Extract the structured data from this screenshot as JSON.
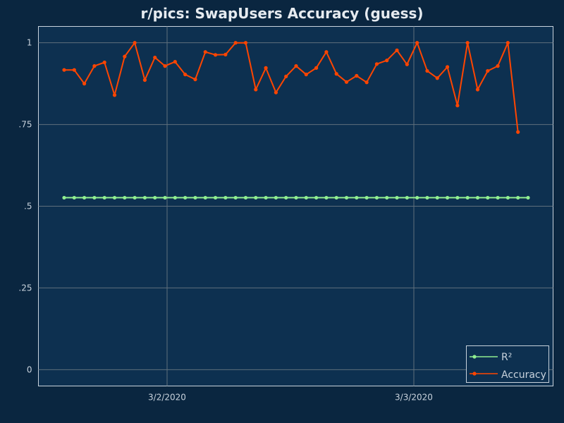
{
  "chart_data": {
    "type": "line",
    "title": "r/pics: SwapUsers Accuracy (guess)",
    "xlabel": "",
    "ylabel": "",
    "x_tick_labels": [
      "3/2/2020",
      "3/3/2020"
    ],
    "y_tick_labels": [
      "0",
      ".25",
      ".5",
      ".75",
      "1"
    ],
    "y_ticks": [
      0,
      0.25,
      0.5,
      0.75,
      1
    ],
    "ylim": [
      -0.05,
      1.05
    ],
    "grid": true,
    "legend_position": "bottom-right",
    "series": [
      {
        "name": "R²",
        "color": "#90ee90",
        "values": [
          0.526,
          0.526,
          0.526,
          0.526,
          0.526,
          0.526,
          0.526,
          0.526,
          0.526,
          0.526,
          0.526,
          0.526,
          0.526,
          0.526,
          0.526,
          0.526,
          0.526,
          0.526,
          0.526,
          0.526,
          0.526,
          0.526,
          0.526,
          0.526,
          0.526,
          0.526,
          0.526,
          0.526,
          0.526,
          0.526,
          0.526,
          0.526,
          0.526,
          0.526,
          0.526,
          0.526,
          0.526,
          0.526,
          0.526,
          0.526,
          0.526,
          0.526,
          0.526,
          0.526,
          0.526,
          0.526,
          0.526
        ]
      },
      {
        "name": "Accuracy",
        "color": "#ff4500",
        "values": [
          0.917,
          0.917,
          0.875,
          0.929,
          0.94,
          0.84,
          0.958,
          1.0,
          0.886,
          0.955,
          0.929,
          0.942,
          0.903,
          0.888,
          0.972,
          0.963,
          0.964,
          1.0,
          1.0,
          0.857,
          0.923,
          0.848,
          0.897,
          0.929,
          0.903,
          0.923,
          0.972,
          0.905,
          0.88,
          0.899,
          0.879,
          0.935,
          0.946,
          0.977,
          0.934,
          1.0,
          0.914,
          0.892,
          0.926,
          0.808,
          1.0,
          0.857,
          0.914,
          0.929,
          1.0,
          0.727
        ]
      }
    ]
  }
}
